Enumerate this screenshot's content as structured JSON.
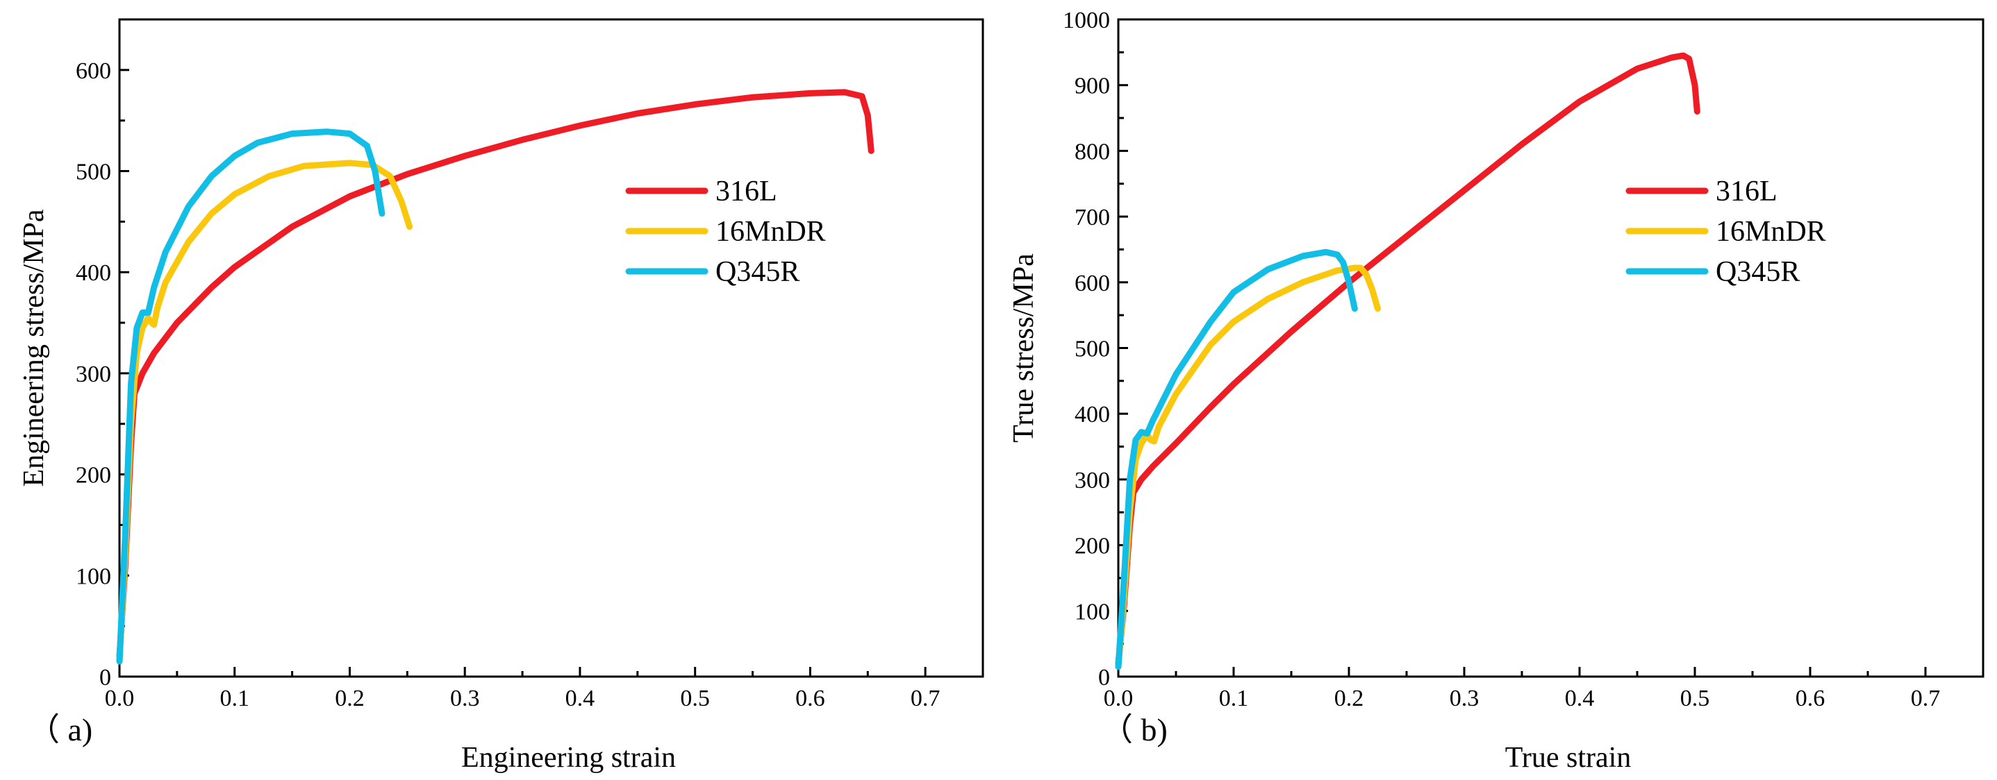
{
  "chart_data": [
    {
      "type": "line",
      "panel_label": "（ a)",
      "xlabel": "Engineering strain",
      "ylabel": "Engineering stress/MPa",
      "xlim": [
        0,
        0.75
      ],
      "ylim": [
        0,
        650
      ],
      "xticks": [
        0.0,
        0.1,
        0.2,
        0.3,
        0.4,
        0.5,
        0.6,
        0.7
      ],
      "xtick_labels": [
        "0.0",
        "0.1",
        "0.2",
        "0.3",
        "0.4",
        "0.5",
        "0.6",
        "0.7"
      ],
      "yticks": [
        0,
        100,
        200,
        300,
        400,
        500,
        600
      ],
      "ytick_labels": [
        "0",
        "100",
        "200",
        "300",
        "400",
        "500",
        "600"
      ],
      "legend_position": "center-right",
      "series": [
        {
          "name": "316L",
          "color": "#ee1c25",
          "x": [
            0.0,
            0.005,
            0.01,
            0.013,
            0.02,
            0.03,
            0.05,
            0.08,
            0.1,
            0.15,
            0.2,
            0.25,
            0.3,
            0.35,
            0.4,
            0.45,
            0.5,
            0.55,
            0.6,
            0.63,
            0.645,
            0.65,
            0.653
          ],
          "y": [
            20,
            110,
            230,
            280,
            300,
            320,
            350,
            385,
            405,
            445,
            475,
            497,
            515,
            531,
            545,
            557,
            566,
            573,
            577,
            578,
            574,
            555,
            520
          ]
        },
        {
          "name": "16MnDR",
          "color": "#f9c80e",
          "x": [
            0.0,
            0.005,
            0.01,
            0.015,
            0.02,
            0.025,
            0.028,
            0.03,
            0.033,
            0.04,
            0.06,
            0.08,
            0.1,
            0.13,
            0.16,
            0.2,
            0.22,
            0.235,
            0.245,
            0.252
          ],
          "y": [
            15,
            120,
            250,
            320,
            345,
            355,
            350,
            348,
            365,
            390,
            430,
            458,
            477,
            495,
            505,
            508,
            506,
            495,
            470,
            445
          ]
        },
        {
          "name": "Q345R",
          "color": "#12bde6",
          "x": [
            0.0,
            0.005,
            0.01,
            0.015,
            0.02,
            0.025,
            0.03,
            0.04,
            0.06,
            0.08,
            0.1,
            0.12,
            0.15,
            0.18,
            0.2,
            0.215,
            0.222,
            0.228
          ],
          "y": [
            15,
            140,
            290,
            345,
            360,
            360,
            385,
            420,
            465,
            495,
            515,
            528,
            537,
            539,
            537,
            525,
            500,
            458
          ]
        }
      ]
    },
    {
      "type": "line",
      "panel_label": "（ b)",
      "xlabel": "True strain",
      "ylabel": "True stress/MPa",
      "xlim": [
        0,
        0.75
      ],
      "ylim": [
        0,
        1000
      ],
      "xticks": [
        0.0,
        0.1,
        0.2,
        0.3,
        0.4,
        0.5,
        0.6,
        0.7
      ],
      "xtick_labels": [
        "0.0",
        "0.1",
        "0.2",
        "0.3",
        "0.4",
        "0.5",
        "0.6",
        "0.7"
      ],
      "yticks": [
        0,
        100,
        200,
        300,
        400,
        500,
        600,
        700,
        800,
        900,
        1000
      ],
      "ytick_labels": [
        "0",
        "100",
        "200",
        "300",
        "400",
        "500",
        "600",
        "700",
        "800",
        "900",
        "1000"
      ],
      "legend_position": "center-right",
      "series": [
        {
          "name": "316L",
          "color": "#ee1c25",
          "x": [
            0.0,
            0.005,
            0.01,
            0.013,
            0.02,
            0.03,
            0.05,
            0.08,
            0.1,
            0.15,
            0.2,
            0.25,
            0.3,
            0.35,
            0.4,
            0.45,
            0.48,
            0.49,
            0.495,
            0.5,
            0.502
          ],
          "y": [
            20,
            110,
            230,
            280,
            300,
            320,
            355,
            410,
            445,
            525,
            600,
            670,
            740,
            810,
            875,
            925,
            942,
            945,
            940,
            900,
            860
          ]
        },
        {
          "name": "16MnDR",
          "color": "#f9c80e",
          "x": [
            0.0,
            0.005,
            0.01,
            0.015,
            0.02,
            0.025,
            0.028,
            0.031,
            0.035,
            0.05,
            0.08,
            0.1,
            0.13,
            0.16,
            0.19,
            0.205,
            0.21,
            0.215,
            0.22,
            0.225
          ],
          "y": [
            15,
            120,
            250,
            330,
            355,
            368,
            360,
            358,
            380,
            430,
            505,
            540,
            575,
            600,
            618,
            622,
            622,
            612,
            590,
            560
          ]
        },
        {
          "name": "Q345R",
          "color": "#12bde6",
          "x": [
            0.0,
            0.005,
            0.01,
            0.015,
            0.02,
            0.025,
            0.03,
            0.05,
            0.08,
            0.1,
            0.13,
            0.16,
            0.18,
            0.19,
            0.195,
            0.2,
            0.205
          ],
          "y": [
            15,
            150,
            300,
            360,
            372,
            370,
            390,
            460,
            540,
            585,
            620,
            640,
            646,
            642,
            630,
            600,
            560
          ]
        }
      ]
    }
  ]
}
